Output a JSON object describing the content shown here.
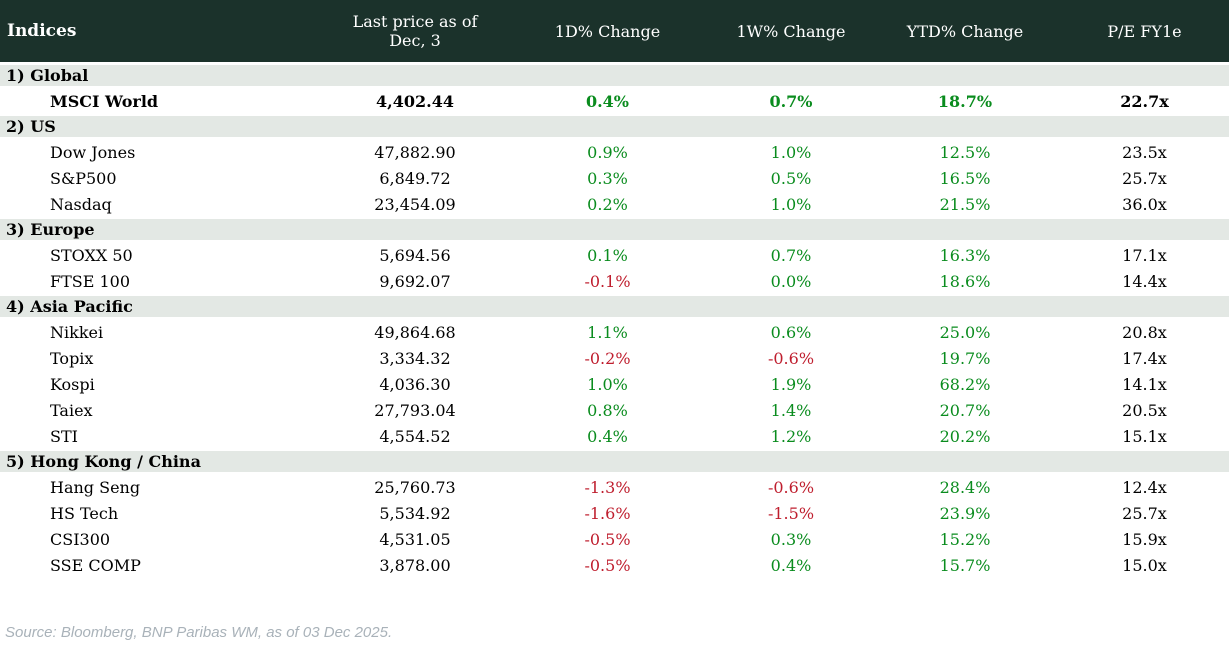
{
  "table": {
    "columns": [
      "Indices",
      "Last price as of Dec, 3",
      "1D% Change",
      "1W% Change",
      "YTD% Change",
      "P/E FY1e"
    ],
    "sections": [
      {
        "label": "1) Global",
        "rows": [
          {
            "name": "MSCI World",
            "price": "4,402.44",
            "d1": "0.4%",
            "w1": "0.7%",
            "ytd": "18.7%",
            "pe": "22.7x",
            "bold": true
          }
        ]
      },
      {
        "label": "2) US",
        "rows": [
          {
            "name": "Dow Jones",
            "price": "47,882.90",
            "d1": "0.9%",
            "w1": "1.0%",
            "ytd": "12.5%",
            "pe": "23.5x",
            "bold": false
          },
          {
            "name": "S&P500",
            "price": "6,849.72",
            "d1": "0.3%",
            "w1": "0.5%",
            "ytd": "16.5%",
            "pe": "25.7x",
            "bold": false
          },
          {
            "name": "Nasdaq",
            "price": "23,454.09",
            "d1": "0.2%",
            "w1": "1.0%",
            "ytd": "21.5%",
            "pe": "36.0x",
            "bold": false
          }
        ]
      },
      {
        "label": "3) Europe",
        "rows": [
          {
            "name": "STOXX 50",
            "price": "5,694.56",
            "d1": "0.1%",
            "w1": "0.7%",
            "ytd": "16.3%",
            "pe": "17.1x",
            "bold": false
          },
          {
            "name": "FTSE 100",
            "price": "9,692.07",
            "d1": "-0.1%",
            "w1": "0.0%",
            "ytd": "18.6%",
            "pe": "14.4x",
            "bold": false
          }
        ]
      },
      {
        "label": "4) Asia Pacific",
        "rows": [
          {
            "name": "Nikkei",
            "price": "49,864.68",
            "d1": "1.1%",
            "w1": "0.6%",
            "ytd": "25.0%",
            "pe": "20.8x",
            "bold": false
          },
          {
            "name": "Topix",
            "price": "3,334.32",
            "d1": "-0.2%",
            "w1": "-0.6%",
            "ytd": "19.7%",
            "pe": "17.4x",
            "bold": false
          },
          {
            "name": "Kospi",
            "price": "4,036.30",
            "d1": "1.0%",
            "w1": "1.9%",
            "ytd": "68.2%",
            "pe": "14.1x",
            "bold": false
          },
          {
            "name": "Taiex",
            "price": "27,793.04",
            "d1": "0.8%",
            "w1": "1.4%",
            "ytd": "20.7%",
            "pe": "20.5x",
            "bold": false
          },
          {
            "name": "STI",
            "price": "4,554.52",
            "d1": "0.4%",
            "w1": "1.2%",
            "ytd": "20.2%",
            "pe": "15.1x",
            "bold": false
          }
        ]
      },
      {
        "label": "5) Hong Kong / China",
        "rows": [
          {
            "name": "Hang Seng",
            "price": "25,760.73",
            "d1": "-1.3%",
            "w1": "-0.6%",
            "ytd": "28.4%",
            "pe": "12.4x",
            "bold": false
          },
          {
            "name": "HS Tech",
            "price": "5,534.92",
            "d1": "-1.6%",
            "w1": "-1.5%",
            "ytd": "23.9%",
            "pe": "25.7x",
            "bold": false
          },
          {
            "name": "CSI300",
            "price": "4,531.05",
            "d1": "-0.5%",
            "w1": "0.3%",
            "ytd": "15.2%",
            "pe": "15.9x",
            "bold": false
          },
          {
            "name": "SSE COMP",
            "price": "3,878.00",
            "d1": "-0.5%",
            "w1": "0.4%",
            "ytd": "15.7%",
            "pe": "15.0x",
            "bold": false
          }
        ]
      }
    ]
  },
  "footer": {
    "source": "Source: Bloomberg, BNP Paribas WM, as of 03 Dec 2025."
  },
  "colors": {
    "header_bg": "#1b322b",
    "header_text": "#ffffff",
    "section_bg": "#e3e8e4",
    "positive": "#0a8c1e",
    "negative": "#bf1e2e",
    "text": "#000000",
    "source_text": "#a9b2b9"
  }
}
